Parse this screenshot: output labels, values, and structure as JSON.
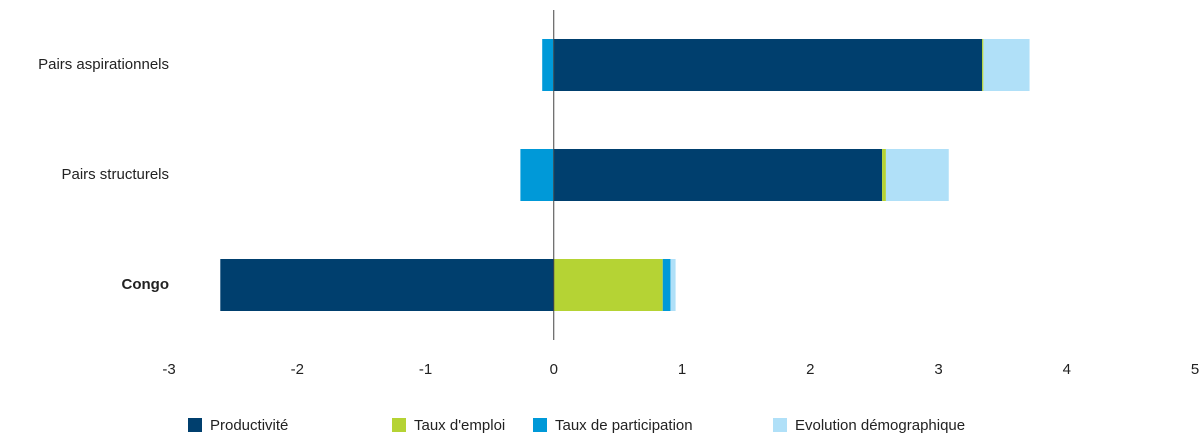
{
  "chart_data": {
    "type": "bar",
    "orientation": "horizontal",
    "stacked": true,
    "categories": [
      "Pairs aspirationnels",
      "Pairs structurels",
      "Congo"
    ],
    "bold_categories": [
      "Congo"
    ],
    "series": [
      {
        "name": "Productivité",
        "color": "#003f6e",
        "values": [
          3.34,
          2.56,
          -2.6
        ]
      },
      {
        "name": "Taux d'emploi",
        "color": "#b5d334",
        "values": [
          0.01,
          0.03,
          0.85
        ]
      },
      {
        "name": "Taux de participation",
        "color": "#0099d8",
        "values": [
          -0.09,
          -0.26,
          0.06
        ]
      },
      {
        "name": "Evolution démographique",
        "color": "#b0e0f8",
        "values": [
          0.36,
          0.49,
          0.04
        ]
      }
    ],
    "xlim": [
      -3,
      5
    ],
    "xticks": [
      -3,
      -2,
      -1,
      0,
      1,
      2,
      3,
      4,
      5
    ],
    "grid": false,
    "legend": "bottom"
  }
}
